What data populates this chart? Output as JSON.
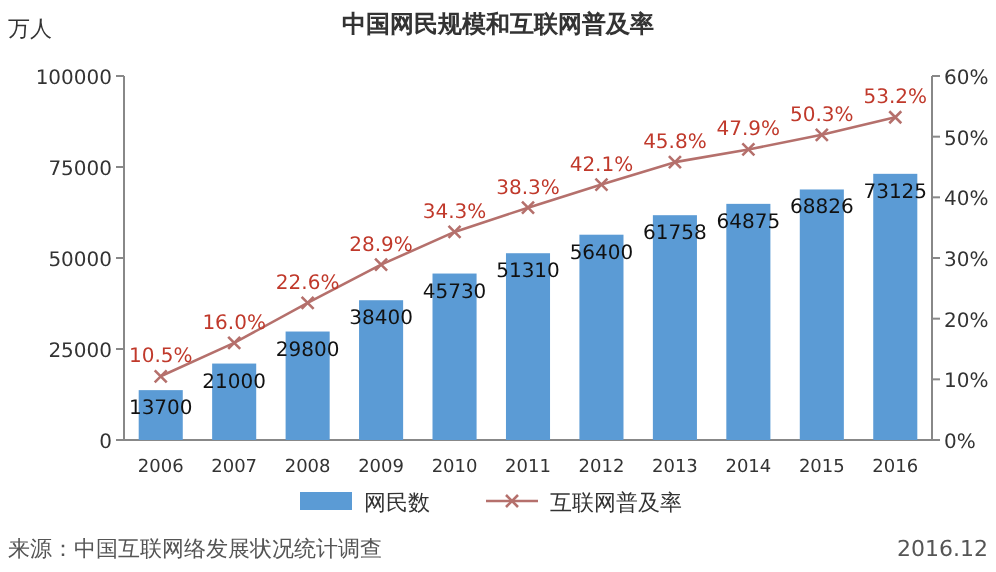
{
  "chart_data": {
    "type": "bar",
    "title": "中国网民规模和互联网普及率",
    "ylabel": "万人",
    "categories": [
      "2006",
      "2007",
      "2008",
      "2009",
      "2010",
      "2011",
      "2012",
      "2013",
      "2014",
      "2015",
      "2016"
    ],
    "series": [
      {
        "name": "网民数",
        "color": "#5b9bd5",
        "values": [
          13700,
          21000,
          29800,
          38400,
          45730,
          51310,
          56400,
          61758,
          64875,
          68826,
          73125
        ],
        "value_labels": [
          "13700",
          "21000",
          "29800",
          "38400",
          "45730",
          "51310",
          "56400",
          "61758",
          "64875",
          "68826",
          "73125"
        ]
      },
      {
        "name": "互联网普及率",
        "type": "line",
        "axis": "y2",
        "color": "#b5706c",
        "marker": "cross",
        "values": [
          10.5,
          16.0,
          22.6,
          28.9,
          34.3,
          38.3,
          42.1,
          45.8,
          47.9,
          50.3,
          53.2
        ],
        "value_labels": [
          "10.5%",
          "16.0%",
          "22.6%",
          "28.9%",
          "34.3%",
          "38.3%",
          "42.1%",
          "45.8%",
          "47.9%",
          "50.3%",
          "53.2%"
        ]
      }
    ],
    "ylim": [
      0,
      100000
    ],
    "yticks": [
      0,
      25000,
      50000,
      75000,
      100000
    ],
    "y2lim": [
      0,
      60
    ],
    "y2ticks": [
      {
        "value": 0,
        "label": "0%"
      },
      {
        "value": 10,
        "label": "10%"
      },
      {
        "value": 20,
        "label": "20%"
      },
      {
        "value": 30,
        "label": "30%"
      },
      {
        "value": 40,
        "label": "40%"
      },
      {
        "value": 50,
        "label": "50%"
      },
      {
        "value": 60,
        "label": "60%"
      }
    ],
    "legend": "bottom",
    "grid": false,
    "annotations": [
      "来源：中国互联网络发展状况统计调查",
      "2016.12"
    ]
  }
}
